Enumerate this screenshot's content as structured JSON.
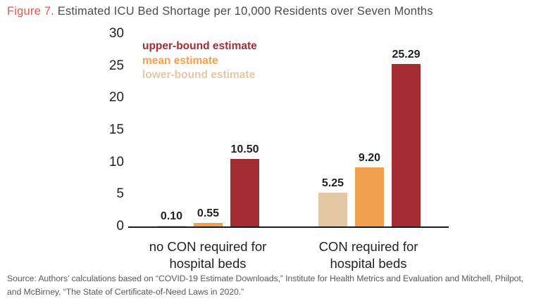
{
  "header": {
    "figure_label": "Figure 7.",
    "title": "Estimated ICU Bed Shortage per 10,000 Residents over Seven Months"
  },
  "chart_data": {
    "type": "bar",
    "title": "Estimated ICU Bed Shortage per 10,000 Residents over Seven Months",
    "xlabel": "",
    "ylabel": "",
    "ylim": [
      0,
      30
    ],
    "yticks": [
      0,
      5,
      10,
      15,
      20,
      25,
      30
    ],
    "grid": false,
    "legend_position": "top-left-inside",
    "categories": [
      [
        "no CON required for",
        "hospital beds"
      ],
      [
        "CON required for",
        "hospital beds"
      ]
    ],
    "series": [
      {
        "name": "lower-bound estimate",
        "color": "#E3C8A5",
        "values": [
          0.1,
          5.25
        ],
        "value_labels": [
          "0.10",
          "5.25"
        ]
      },
      {
        "name": "mean estimate",
        "color": "#F0A14D",
        "values": [
          0.55,
          9.2
        ],
        "value_labels": [
          "0.55",
          "9.20"
        ]
      },
      {
        "name": "upper-bound estimate",
        "color": "#A22D33",
        "values": [
          10.5,
          25.29
        ],
        "value_labels": [
          "10.50",
          "25.29"
        ]
      }
    ],
    "legend": [
      {
        "label": "upper-bound estimate",
        "color": "#A22D33"
      },
      {
        "label": "mean estimate",
        "color": "#F0A14D"
      },
      {
        "label": "lower-bound estimate",
        "color": "#E3C8A5"
      }
    ]
  },
  "source": {
    "text": "Source: Authors’ calculations based on “COVID-19 Estimate Downloads,” Institute for Health Metrics and Evaluation and Mitchell, Philpot, and McBirney, “The State of Certificate-of-Need Laws in 2020.”"
  }
}
